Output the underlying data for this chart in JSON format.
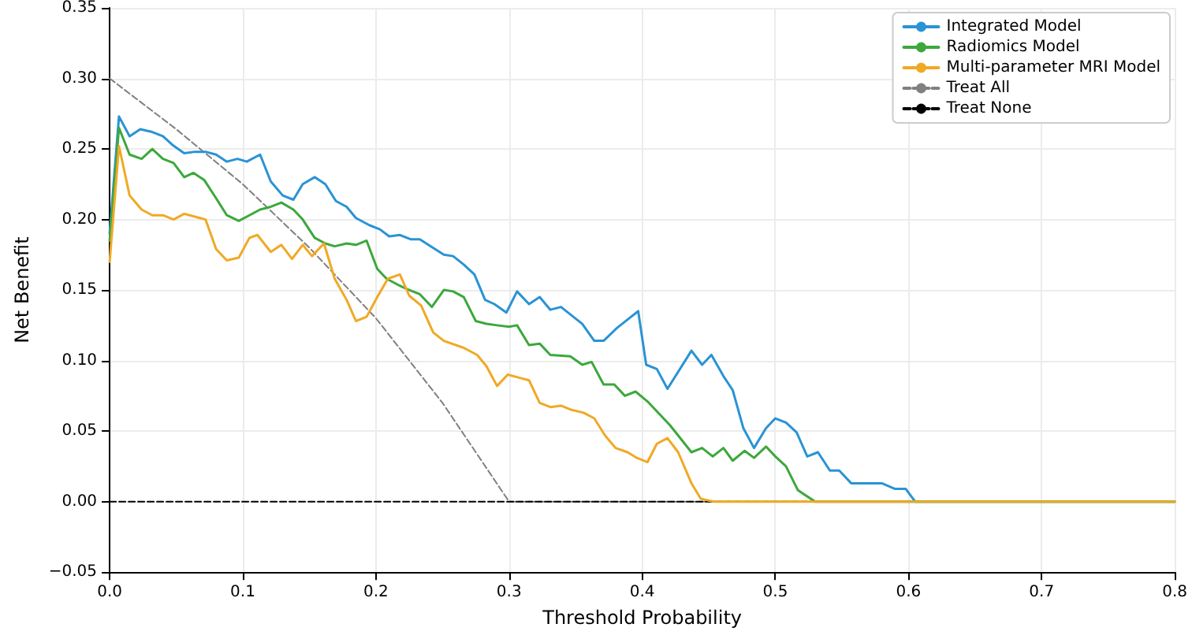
{
  "chart_data": {
    "type": "line",
    "xlabel": "Threshold Probability",
    "ylabel": "Net Benefit",
    "xlim": [
      0,
      0.8
    ],
    "ylim": [
      -0.05,
      0.35
    ],
    "xticks": [
      {
        "value": 0,
        "label": "0.0"
      },
      {
        "value": 0.1,
        "label": "0.1"
      },
      {
        "value": 0.2,
        "label": "0.2"
      },
      {
        "value": 0.3,
        "label": "0.3"
      },
      {
        "value": 0.4,
        "label": "0.4"
      },
      {
        "value": 0.5,
        "label": "0.5"
      },
      {
        "value": 0.6,
        "label": "0.6"
      },
      {
        "value": 0.7,
        "label": "0.7"
      },
      {
        "value": 0.8,
        "label": "0.8"
      }
    ],
    "yticks": [
      {
        "value": -0.05,
        "label": "−0.05"
      },
      {
        "value": 0,
        "label": "0.00"
      },
      {
        "value": 0.05,
        "label": "0.05"
      },
      {
        "value": 0.1,
        "label": "0.10"
      },
      {
        "value": 0.15,
        "label": "0.15"
      },
      {
        "value": 0.2,
        "label": "0.20"
      },
      {
        "value": 0.25,
        "label": "0.25"
      },
      {
        "value": 0.3,
        "label": "0.30"
      },
      {
        "value": 0.35,
        "label": "0.35"
      }
    ],
    "grid": true,
    "legend": "top right",
    "marker": "none",
    "series": [
      {
        "name": "Integrated Model",
        "color": "#2a93d5",
        "line_style": "solid",
        "x": [
          0,
          0.007,
          0.015,
          0.023,
          0.032,
          0.04,
          0.047,
          0.056,
          0.064,
          0.072,
          0.08,
          0.088,
          0.096,
          0.103,
          0.113,
          0.121,
          0.13,
          0.138,
          0.145,
          0.154,
          0.162,
          0.17,
          0.178,
          0.185,
          0.195,
          0.203,
          0.21,
          0.218,
          0.226,
          0.233,
          0.241,
          0.251,
          0.258,
          0.266,
          0.274,
          0.282,
          0.289,
          0.298,
          0.306,
          0.315,
          0.323,
          0.331,
          0.339,
          0.347,
          0.355,
          0.364,
          0.371,
          0.381,
          0.389,
          0.397,
          0.403,
          0.411,
          0.419,
          0.437,
          0.445,
          0.452,
          0.461,
          0.468,
          0.476,
          0.484,
          0.493,
          0.5,
          0.508,
          0.516,
          0.524,
          0.532,
          0.541,
          0.548,
          0.557,
          0.58,
          0.59,
          0.598,
          0.605,
          0.8
        ],
        "values": [
          0.19,
          0.273,
          0.259,
          0.264,
          0.262,
          0.259,
          0.253,
          0.247,
          0.248,
          0.248,
          0.246,
          0.241,
          0.243,
          0.241,
          0.246,
          0.227,
          0.217,
          0.214,
          0.225,
          0.23,
          0.225,
          0.213,
          0.209,
          0.201,
          0.196,
          0.193,
          0.188,
          0.189,
          0.186,
          0.186,
          0.181,
          0.175,
          0.174,
          0.168,
          0.161,
          0.143,
          0.14,
          0.134,
          0.149,
          0.14,
          0.145,
          0.136,
          0.138,
          0.132,
          0.126,
          0.114,
          0.114,
          0.123,
          0.129,
          0.135,
          0.097,
          0.094,
          0.08,
          0.107,
          0.097,
          0.104,
          0.089,
          0.079,
          0.052,
          0.038,
          0.052,
          0.059,
          0.056,
          0.049,
          0.032,
          0.035,
          0.022,
          0.022,
          0.013,
          0.013,
          0.009,
          0.009,
          0,
          0
        ]
      },
      {
        "name": "Radiomics Model",
        "color": "#3ca83c",
        "line_style": "solid",
        "x": [
          0,
          0.007,
          0.015,
          0.024,
          0.032,
          0.04,
          0.048,
          0.056,
          0.063,
          0.071,
          0.08,
          0.088,
          0.097,
          0.105,
          0.113,
          0.121,
          0.129,
          0.138,
          0.145,
          0.154,
          0.162,
          0.169,
          0.178,
          0.185,
          0.193,
          0.201,
          0.208,
          0.218,
          0.225,
          0.233,
          0.242,
          0.251,
          0.258,
          0.266,
          0.275,
          0.283,
          0.291,
          0.3,
          0.306,
          0.315,
          0.323,
          0.331,
          0.346,
          0.355,
          0.362,
          0.371,
          0.379,
          0.387,
          0.395,
          0.404,
          0.421,
          0.437,
          0.445,
          0.453,
          0.461,
          0.468,
          0.477,
          0.484,
          0.493,
          0.5,
          0.508,
          0.517,
          0.53,
          0.8
        ],
        "values": [
          0.185,
          0.265,
          0.246,
          0.243,
          0.25,
          0.243,
          0.24,
          0.23,
          0.233,
          0.228,
          0.215,
          0.203,
          0.199,
          0.203,
          0.207,
          0.209,
          0.212,
          0.207,
          0.2,
          0.187,
          0.183,
          0.181,
          0.183,
          0.182,
          0.185,
          0.165,
          0.158,
          0.153,
          0.15,
          0.147,
          0.138,
          0.15,
          0.149,
          0.145,
          0.128,
          0.126,
          0.125,
          0.124,
          0.125,
          0.111,
          0.112,
          0.104,
          0.103,
          0.097,
          0.099,
          0.083,
          0.083,
          0.075,
          0.078,
          0.071,
          0.054,
          0.035,
          0.038,
          0.032,
          0.038,
          0.029,
          0.036,
          0.031,
          0.039,
          0.032,
          0.025,
          0.008,
          0,
          0
        ]
      },
      {
        "name": "Multi-parameter MRI Model",
        "color": "#f0a925",
        "line_style": "solid",
        "x": [
          0,
          0.007,
          0.015,
          0.024,
          0.032,
          0.04,
          0.048,
          0.056,
          0.064,
          0.072,
          0.08,
          0.088,
          0.097,
          0.105,
          0.111,
          0.121,
          0.129,
          0.137,
          0.145,
          0.152,
          0.161,
          0.169,
          0.178,
          0.185,
          0.193,
          0.201,
          0.209,
          0.218,
          0.225,
          0.234,
          0.243,
          0.251,
          0.266,
          0.276,
          0.283,
          0.291,
          0.299,
          0.307,
          0.315,
          0.323,
          0.331,
          0.339,
          0.347,
          0.356,
          0.364,
          0.372,
          0.38,
          0.389,
          0.396,
          0.404,
          0.411,
          0.419,
          0.427,
          0.437,
          0.444,
          0.454,
          0.8
        ],
        "values": [
          0.17,
          0.252,
          0.217,
          0.207,
          0.203,
          0.203,
          0.2,
          0.204,
          0.202,
          0.2,
          0.179,
          0.171,
          0.173,
          0.187,
          0.189,
          0.177,
          0.182,
          0.172,
          0.182,
          0.174,
          0.183,
          0.158,
          0.143,
          0.128,
          0.131,
          0.145,
          0.158,
          0.161,
          0.146,
          0.139,
          0.12,
          0.114,
          0.109,
          0.104,
          0.096,
          0.082,
          0.09,
          0.088,
          0.086,
          0.07,
          0.067,
          0.068,
          0.065,
          0.063,
          0.059,
          0.047,
          0.038,
          0.035,
          0.031,
          0.028,
          0.041,
          0.045,
          0.035,
          0.013,
          0.002,
          0,
          0
        ]
      },
      {
        "name": "Treat All",
        "color": "#808080",
        "line_style": "dashed",
        "x": [
          0,
          0.05,
          0.1,
          0.15,
          0.2,
          0.25,
          0.3,
          0.8
        ],
        "values": [
          0.3,
          0.264,
          0.225,
          0.18,
          0.13,
          0.07,
          0,
          0
        ]
      },
      {
        "name": "Treat None",
        "color": "#000000",
        "line_style": "dashed",
        "x": [
          0,
          0.8
        ],
        "values": [
          0,
          0
        ]
      }
    ]
  }
}
